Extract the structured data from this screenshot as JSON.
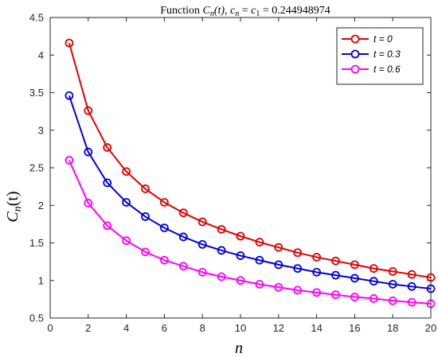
{
  "chart_data": {
    "type": "line",
    "title": {
      "prefix": "Function ",
      "fn": "C",
      "fn_sub": "n",
      "fn_arg": "(t)",
      "sep": ", ",
      "eq_lhs": "c",
      "eq_lhs_sub": "n",
      "eq_mid": " = ",
      "eq_rhs": "c",
      "eq_rhs_sub": "1",
      "eq_value": " = 0.244948974"
    },
    "xlabel": "n",
    "ylabel": {
      "main": "C",
      "sub": "n",
      "arg": "(t)"
    },
    "xlim": [
      0,
      20
    ],
    "ylim": [
      0.5,
      4.5
    ],
    "xticks": [
      "0",
      "2",
      "4",
      "6",
      "8",
      "10",
      "12",
      "14",
      "16",
      "18",
      "20"
    ],
    "yticks": [
      "0.5",
      "1",
      "1.5",
      "2",
      "2.5",
      "3",
      "3.5",
      "4",
      "4.5"
    ],
    "grid": false,
    "legend_position": "top-right",
    "x": [
      1,
      2,
      3,
      4,
      5,
      6,
      7,
      8,
      9,
      10,
      11,
      12,
      13,
      14,
      15,
      16,
      17,
      18,
      19,
      20
    ],
    "series": [
      {
        "name": "t = 0",
        "color": "#e00000",
        "values": [
          4.16,
          3.26,
          2.77,
          2.45,
          2.22,
          2.04,
          1.9,
          1.78,
          1.68,
          1.59,
          1.51,
          1.44,
          1.37,
          1.31,
          1.26,
          1.21,
          1.16,
          1.12,
          1.08,
          1.04
        ]
      },
      {
        "name": "t = 0.3",
        "color": "#0000e0",
        "values": [
          3.46,
          2.71,
          2.3,
          2.04,
          1.85,
          1.7,
          1.58,
          1.48,
          1.4,
          1.33,
          1.27,
          1.21,
          1.16,
          1.11,
          1.07,
          1.03,
          0.99,
          0.95,
          0.92,
          0.89
        ]
      },
      {
        "name": "t = 0.6",
        "color": "#ff00ff",
        "values": [
          2.6,
          2.03,
          1.73,
          1.53,
          1.38,
          1.27,
          1.19,
          1.11,
          1.05,
          1.0,
          0.95,
          0.91,
          0.87,
          0.84,
          0.81,
          0.78,
          0.76,
          0.73,
          0.71,
          0.69
        ]
      }
    ]
  }
}
